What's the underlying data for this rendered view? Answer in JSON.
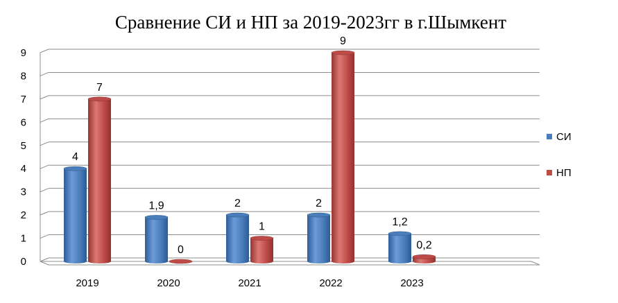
{
  "chart_data": {
    "type": "bar",
    "title": "Сравнение СИ и НП за 2019-2023гг в г.Шымкент",
    "categories": [
      "2019",
      "2020",
      "2021",
      "2022",
      "2023"
    ],
    "series": [
      {
        "name": "СИ",
        "values": [
          4,
          1.9,
          2,
          2,
          1.2
        ],
        "labels": [
          "4",
          "1,9",
          "2",
          "2",
          "1,2"
        ],
        "color": "#4a7ebb"
      },
      {
        "name": "НП",
        "values": [
          7,
          0,
          1,
          9,
          0.2
        ],
        "labels": [
          "7",
          "0",
          "1",
          "9",
          "0,2"
        ],
        "color": "#be4b48"
      }
    ],
    "ylim": [
      0,
      9
    ],
    "yticks": [
      "0",
      "1",
      "2",
      "3",
      "4",
      "5",
      "6",
      "7",
      "8",
      "9"
    ],
    "grid": true,
    "legend_position": "right"
  }
}
